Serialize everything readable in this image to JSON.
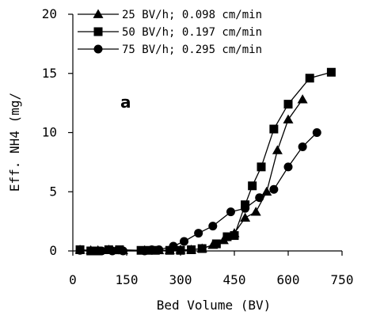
{
  "chart_data": {
    "type": "line",
    "title": "",
    "panel_label": "a",
    "xlabel": "Bed Volume (BV)",
    "ylabel": "Eff. NH4 (mg/",
    "xlim": [
      0,
      750
    ],
    "ylim": [
      0,
      20
    ],
    "xticks": [
      0,
      150,
      300,
      450,
      600,
      750
    ],
    "yticks": [
      0,
      5,
      10,
      15,
      20
    ],
    "grid": false,
    "legend_position": "top-left",
    "series": [
      {
        "name": "25 BV/h; 0.098 cm/min",
        "marker": "triangle",
        "color": "#000000",
        "points": [
          [
            20,
            0.1
          ],
          [
            50,
            0.05
          ],
          [
            70,
            0.05
          ],
          [
            100,
            0.1
          ],
          [
            120,
            0.05
          ],
          [
            140,
            0.05
          ],
          [
            200,
            0.05
          ],
          [
            220,
            0.05
          ],
          [
            240,
            0.05
          ],
          [
            270,
            0.05
          ],
          [
            300,
            0.1
          ],
          [
            330,
            0.1
          ],
          [
            360,
            0.2
          ],
          [
            390,
            0.5
          ],
          [
            420,
            0.9
          ],
          [
            450,
            1.5
          ],
          [
            480,
            2.8
          ],
          [
            510,
            3.3
          ],
          [
            540,
            5.0
          ],
          [
            570,
            8.5
          ],
          [
            600,
            11.1
          ],
          [
            640,
            12.8
          ]
        ]
      },
      {
        "name": "50 BV/h; 0.197 cm/min",
        "marker": "square",
        "color": "#000000",
        "points": [
          [
            20,
            0.1
          ],
          [
            50,
            0.0
          ],
          [
            70,
            0.0
          ],
          [
            100,
            0.1
          ],
          [
            130,
            0.1
          ],
          [
            190,
            0.05
          ],
          [
            210,
            0.05
          ],
          [
            230,
            0.05
          ],
          [
            270,
            0.05
          ],
          [
            300,
            0.05
          ],
          [
            330,
            0.1
          ],
          [
            360,
            0.2
          ],
          [
            400,
            0.6
          ],
          [
            430,
            1.2
          ],
          [
            450,
            1.3
          ],
          [
            480,
            3.9
          ],
          [
            500,
            5.5
          ],
          [
            525,
            7.1
          ],
          [
            560,
            10.3
          ],
          [
            600,
            12.4
          ],
          [
            660,
            14.6
          ],
          [
            720,
            15.1
          ]
        ]
      },
      {
        "name": "75 BV/h; 0.295 cm/min",
        "marker": "circle",
        "color": "#000000",
        "points": [
          [
            20,
            0.05
          ],
          [
            50,
            0.0
          ],
          [
            80,
            0.0
          ],
          [
            110,
            0.0
          ],
          [
            140,
            0.0
          ],
          [
            200,
            0.0
          ],
          [
            220,
            0.1
          ],
          [
            240,
            0.1
          ],
          [
            280,
            0.4
          ],
          [
            310,
            0.8
          ],
          [
            350,
            1.5
          ],
          [
            390,
            2.1
          ],
          [
            440,
            3.3
          ],
          [
            480,
            3.6
          ],
          [
            520,
            4.5
          ],
          [
            560,
            5.2
          ],
          [
            600,
            7.1
          ],
          [
            640,
            8.8
          ],
          [
            680,
            10.0
          ]
        ]
      }
    ]
  }
}
